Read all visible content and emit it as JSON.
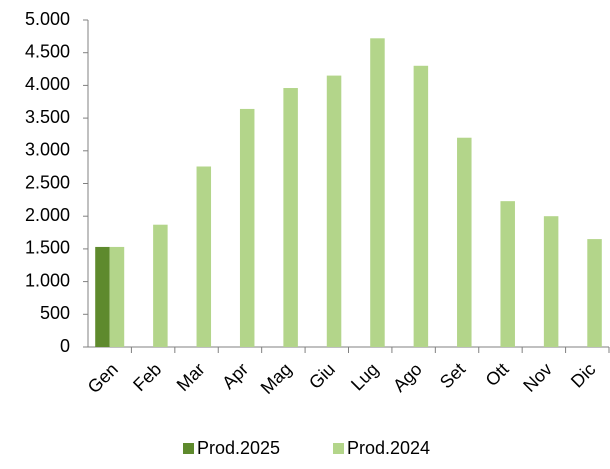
{
  "chart_data": {
    "type": "bar",
    "categories": [
      "Gen",
      "Feb",
      "Mar",
      "Apr",
      "Mag",
      "Giu",
      "Lug",
      "Ago",
      "Set",
      "Ott",
      "Nov",
      "Dic"
    ],
    "series": [
      {
        "name": "Prod.2025",
        "color": "#5e8a2d",
        "values": [
          1530,
          null,
          null,
          null,
          null,
          null,
          null,
          null,
          null,
          null,
          null,
          null
        ]
      },
      {
        "name": "Prod.2024",
        "color": "#b3d58a",
        "values": [
          1530,
          1870,
          2760,
          3640,
          3960,
          4150,
          4720,
          4300,
          3200,
          2230,
          2000,
          1650
        ]
      }
    ],
    "ylim": [
      0,
      5000
    ],
    "yticks": [
      0,
      500,
      {
        "value": 1000,
        "label": "1.000"
      },
      {
        "value": 1500,
        "label": "1.500"
      },
      {
        "value": 2000,
        "label": "2.000"
      },
      {
        "value": 2500,
        "label": "2.500"
      },
      {
        "value": 3000,
        "label": "3.000"
      },
      {
        "value": 3500,
        "label": "3.500"
      },
      {
        "value": 4000,
        "label": "4.000"
      },
      {
        "value": 4500,
        "label": "4.500"
      },
      {
        "value": 5000,
        "label": "5.000"
      }
    ],
    "grid": false,
    "legend": "bottom"
  }
}
